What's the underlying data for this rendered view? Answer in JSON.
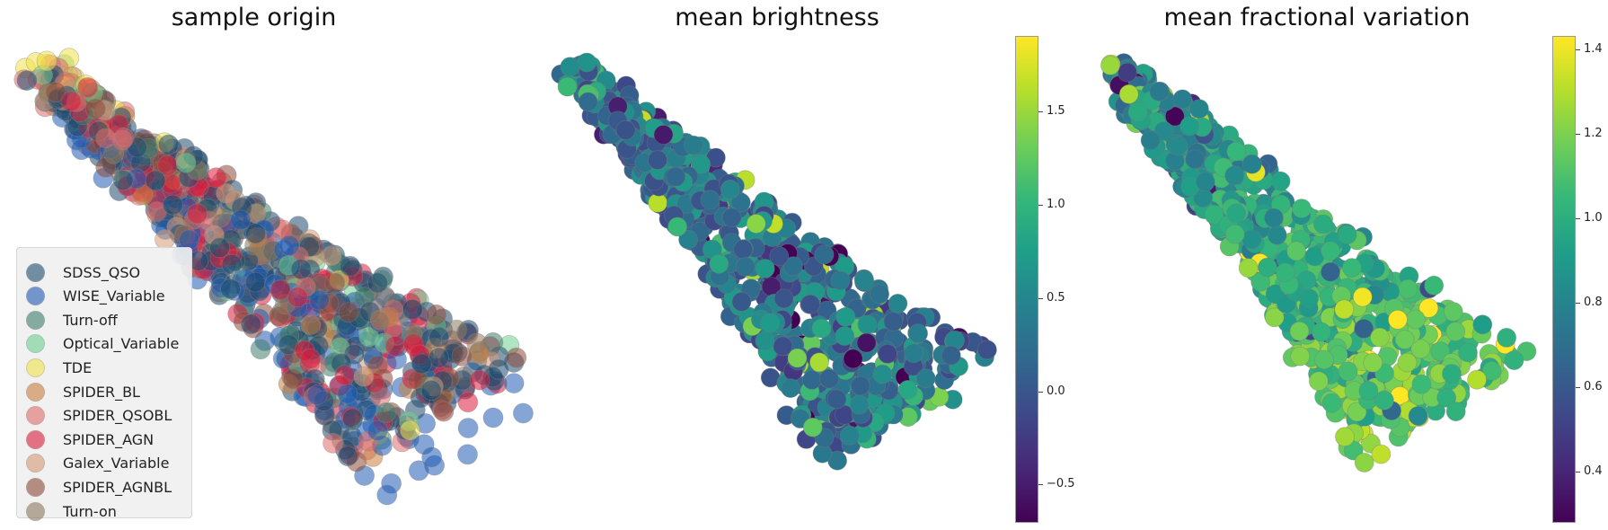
{
  "colors": {
    "SDSS_QSO": "#1f4a6e",
    "WISE_Variable": "#1f5bb5",
    "Turn-off": "#3f7d6b",
    "Optical_Variable": "#6fcf8f",
    "TDE": "#f2e24a",
    "SPIDER_BL": "#c97f3e",
    "SPIDER_QSOBL": "#e06b6b",
    "SPIDER_AGN": "#dc1c3c",
    "Galex_Variable": "#d69a77",
    "SPIDER_AGNBL": "#8e4a3a",
    "Turn-on": "#8c7a5f"
  },
  "panels": [
    {
      "title": "sample origin",
      "legend": [
        {
          "label": "SDSS_QSO",
          "color": "#1f4a6e"
        },
        {
          "label": "WISE_Variable",
          "color": "#1f5bb5"
        },
        {
          "label": "Turn-off",
          "color": "#3f7d6b"
        },
        {
          "label": "Optical_Variable",
          "color": "#6fcf8f"
        },
        {
          "label": "TDE",
          "color": "#f2e24a"
        },
        {
          "label": "SPIDER_BL",
          "color": "#c97f3e"
        },
        {
          "label": "SPIDER_QSOBL",
          "color": "#e06b6b"
        },
        {
          "label": "SPIDER_AGN",
          "color": "#dc1c3c"
        },
        {
          "label": "Galex_Variable",
          "color": "#d69a77"
        },
        {
          "label": "SPIDER_AGNBL",
          "color": "#8e4a3a"
        },
        {
          "label": "Turn-on",
          "color": "#8c7a5f"
        }
      ]
    },
    {
      "title": "mean brightness",
      "colorbar": {
        "min": -0.7,
        "max": 1.9,
        "ticks": [
          "1.5",
          "1.0",
          "0.5",
          "0.0",
          "−0.5"
        ],
        "tick_values": [
          1.5,
          1.0,
          0.5,
          0.0,
          -0.5
        ],
        "colormap": "viridis"
      }
    },
    {
      "title": "mean fractional variation",
      "colorbar": {
        "min": 0.28,
        "max": 1.43,
        "ticks": [
          "1.4",
          "1.2",
          "1.0",
          "0.8",
          "0.6",
          "0.4"
        ],
        "tick_values": [
          1.4,
          1.2,
          1.0,
          0.8,
          0.6,
          0.4
        ],
        "colormap": "viridis"
      }
    }
  ],
  "chart_data": [
    {
      "type": "scatter",
      "title": "sample origin",
      "xlabel": "",
      "ylabel": "",
      "axes": "off",
      "legend_location": "lower-left",
      "series": [
        {
          "name": "SDSS_QSO"
        },
        {
          "name": "WISE_Variable"
        },
        {
          "name": "Turn-off"
        },
        {
          "name": "Optical_Variable"
        },
        {
          "name": "TDE"
        },
        {
          "name": "SPIDER_BL"
        },
        {
          "name": "SPIDER_QSOBL"
        },
        {
          "name": "SPIDER_AGN"
        },
        {
          "name": "Galex_Variable"
        },
        {
          "name": "SPIDER_AGNBL"
        },
        {
          "name": "Turn-on"
        }
      ]
    },
    {
      "type": "scatter",
      "title": "mean brightness",
      "axes": "off",
      "colorbar_range": [
        -0.7,
        1.9
      ],
      "colorbar_ticks": [
        -0.5,
        0.0,
        0.5,
        1.0,
        1.5
      ],
      "colormap": "viridis"
    },
    {
      "type": "scatter",
      "title": "mean fractional variation",
      "axes": "off",
      "colorbar_range": [
        0.28,
        1.43
      ],
      "colorbar_ticks": [
        0.4,
        0.6,
        0.8,
        1.0,
        1.2,
        1.4
      ],
      "colormap": "viridis"
    }
  ]
}
